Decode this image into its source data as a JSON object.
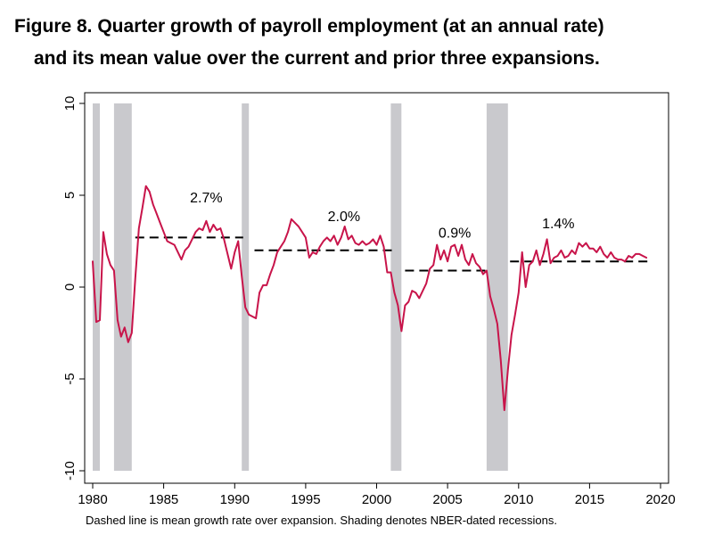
{
  "title": {
    "line1": "Figure 8. Quarter growth of payroll employment (at an annual rate)",
    "line2": "and its mean value over the current and prior three expansions."
  },
  "note": "Dashed line is mean growth rate over expansion. Shading denotes NBER-dated recessions.",
  "colors": {
    "series": "#c8144a",
    "recession": "#c9c9cd",
    "mean": "#000000",
    "frame": "#000000"
  },
  "chart_data": {
    "type": "line",
    "title": "Quarter growth of payroll employment (at an annual rate) and its mean value over the current and prior three expansions.",
    "xlabel": "",
    "ylabel": "",
    "xlim": [
      1979.6,
      2020.4
    ],
    "ylim": [
      -10,
      10
    ],
    "xticks": [
      1980,
      1985,
      1990,
      1995,
      2000,
      2005,
      2010,
      2015,
      2020
    ],
    "yticks": [
      -10,
      -5,
      0,
      5,
      10
    ],
    "grid": false,
    "recessions": [
      [
        1980.0,
        1980.5
      ],
      [
        1981.5,
        1982.75
      ],
      [
        1990.5,
        1991.0
      ],
      [
        2001.0,
        2001.75
      ],
      [
        2007.75,
        2009.25
      ]
    ],
    "expansion_means": [
      {
        "start": 1983.0,
        "end": 1990.6,
        "value": 2.7,
        "label": "2.7%"
      },
      {
        "start": 1991.4,
        "end": 2001.2,
        "value": 2.0,
        "label": "2.0%"
      },
      {
        "start": 2002.0,
        "end": 2008.0,
        "value": 0.9,
        "label": "0.9%"
      },
      {
        "start": 2009.4,
        "end": 2019.1,
        "value": 1.4,
        "label": "1.4%"
      }
    ],
    "series": [
      {
        "name": "Quarterly payroll employment growth (annual rate, %)",
        "points": [
          [
            1980.0,
            1.4
          ],
          [
            1980.25,
            -1.9
          ],
          [
            1980.5,
            -1.8
          ],
          [
            1980.75,
            3.0
          ],
          [
            1981.0,
            1.8
          ],
          [
            1981.25,
            1.2
          ],
          [
            1981.5,
            0.9
          ],
          [
            1981.75,
            -1.8
          ],
          [
            1982.0,
            -2.7
          ],
          [
            1982.25,
            -2.2
          ],
          [
            1982.5,
            -3.0
          ],
          [
            1982.75,
            -2.5
          ],
          [
            1983.0,
            0.5
          ],
          [
            1983.25,
            3.2
          ],
          [
            1983.5,
            4.3
          ],
          [
            1983.75,
            5.5
          ],
          [
            1984.0,
            5.2
          ],
          [
            1984.25,
            4.5
          ],
          [
            1984.5,
            4.0
          ],
          [
            1984.75,
            3.5
          ],
          [
            1985.0,
            3.0
          ],
          [
            1985.25,
            2.5
          ],
          [
            1985.5,
            2.4
          ],
          [
            1985.75,
            2.3
          ],
          [
            1986.0,
            1.9
          ],
          [
            1986.25,
            1.5
          ],
          [
            1986.5,
            2.0
          ],
          [
            1986.75,
            2.2
          ],
          [
            1987.0,
            2.6
          ],
          [
            1987.25,
            3.0
          ],
          [
            1987.5,
            3.2
          ],
          [
            1987.75,
            3.1
          ],
          [
            1988.0,
            3.6
          ],
          [
            1988.25,
            3.0
          ],
          [
            1988.5,
            3.4
          ],
          [
            1988.75,
            3.1
          ],
          [
            1989.0,
            3.2
          ],
          [
            1989.25,
            2.6
          ],
          [
            1989.5,
            1.8
          ],
          [
            1989.75,
            1.0
          ],
          [
            1990.0,
            1.9
          ],
          [
            1990.25,
            2.5
          ],
          [
            1990.5,
            0.6
          ],
          [
            1990.75,
            -1.1
          ],
          [
            1991.0,
            -1.5
          ],
          [
            1991.25,
            -1.6
          ],
          [
            1991.5,
            -1.7
          ],
          [
            1991.75,
            -0.3
          ],
          [
            1992.0,
            0.1
          ],
          [
            1992.25,
            0.1
          ],
          [
            1992.5,
            0.7
          ],
          [
            1992.75,
            1.2
          ],
          [
            1993.0,
            1.9
          ],
          [
            1993.25,
            2.2
          ],
          [
            1993.5,
            2.5
          ],
          [
            1993.75,
            3.0
          ],
          [
            1994.0,
            3.7
          ],
          [
            1994.25,
            3.5
          ],
          [
            1994.5,
            3.3
          ],
          [
            1994.75,
            3.0
          ],
          [
            1995.0,
            2.7
          ],
          [
            1995.25,
            1.6
          ],
          [
            1995.5,
            1.9
          ],
          [
            1995.75,
            1.8
          ],
          [
            1996.0,
            2.2
          ],
          [
            1996.25,
            2.5
          ],
          [
            1996.5,
            2.7
          ],
          [
            1996.75,
            2.5
          ],
          [
            1997.0,
            2.8
          ],
          [
            1997.25,
            2.3
          ],
          [
            1997.5,
            2.7
          ],
          [
            1997.75,
            3.3
          ],
          [
            1998.0,
            2.6
          ],
          [
            1998.25,
            2.8
          ],
          [
            1998.5,
            2.4
          ],
          [
            1998.75,
            2.3
          ],
          [
            1999.0,
            2.5
          ],
          [
            1999.25,
            2.3
          ],
          [
            1999.5,
            2.4
          ],
          [
            1999.75,
            2.6
          ],
          [
            2000.0,
            2.3
          ],
          [
            2000.25,
            2.8
          ],
          [
            2000.5,
            2.2
          ],
          [
            2000.75,
            0.8
          ],
          [
            2001.0,
            0.8
          ],
          [
            2001.25,
            -0.3
          ],
          [
            2001.5,
            -1.0
          ],
          [
            2001.75,
            -2.4
          ],
          [
            2002.0,
            -1.0
          ],
          [
            2002.25,
            -0.8
          ],
          [
            2002.5,
            -0.2
          ],
          [
            2002.75,
            -0.3
          ],
          [
            2003.0,
            -0.6
          ],
          [
            2003.25,
            -0.2
          ],
          [
            2003.5,
            0.2
          ],
          [
            2003.75,
            1.0
          ],
          [
            2004.0,
            1.2
          ],
          [
            2004.25,
            2.3
          ],
          [
            2004.5,
            1.5
          ],
          [
            2004.75,
            2.0
          ],
          [
            2005.0,
            1.4
          ],
          [
            2005.25,
            2.2
          ],
          [
            2005.5,
            2.3
          ],
          [
            2005.75,
            1.7
          ],
          [
            2006.0,
            2.3
          ],
          [
            2006.25,
            1.5
          ],
          [
            2006.5,
            1.2
          ],
          [
            2006.75,
            1.8
          ],
          [
            2007.0,
            1.3
          ],
          [
            2007.25,
            1.1
          ],
          [
            2007.5,
            0.7
          ],
          [
            2007.75,
            0.9
          ],
          [
            2008.0,
            -0.5
          ],
          [
            2008.25,
            -1.2
          ],
          [
            2008.5,
            -2.0
          ],
          [
            2008.75,
            -4.0
          ],
          [
            2009.0,
            -6.7
          ],
          [
            2009.25,
            -4.5
          ],
          [
            2009.5,
            -2.6
          ],
          [
            2009.75,
            -1.5
          ],
          [
            2010.0,
            -0.3
          ],
          [
            2010.25,
            1.9
          ],
          [
            2010.5,
            0.0
          ],
          [
            2010.75,
            1.2
          ],
          [
            2011.0,
            1.4
          ],
          [
            2011.25,
            2.0
          ],
          [
            2011.5,
            1.2
          ],
          [
            2011.75,
            1.8
          ],
          [
            2012.0,
            2.6
          ],
          [
            2012.25,
            1.3
          ],
          [
            2012.5,
            1.6
          ],
          [
            2012.75,
            1.7
          ],
          [
            2013.0,
            2.0
          ],
          [
            2013.25,
            1.6
          ],
          [
            2013.5,
            1.7
          ],
          [
            2013.75,
            2.0
          ],
          [
            2014.0,
            1.8
          ],
          [
            2014.25,
            2.4
          ],
          [
            2014.5,
            2.2
          ],
          [
            2014.75,
            2.4
          ],
          [
            2015.0,
            2.1
          ],
          [
            2015.25,
            2.1
          ],
          [
            2015.5,
            1.9
          ],
          [
            2015.75,
            2.2
          ],
          [
            2016.0,
            1.8
          ],
          [
            2016.25,
            1.6
          ],
          [
            2016.5,
            1.9
          ],
          [
            2016.75,
            1.6
          ],
          [
            2017.0,
            1.5
          ],
          [
            2017.25,
            1.5
          ],
          [
            2017.5,
            1.4
          ],
          [
            2017.75,
            1.7
          ],
          [
            2018.0,
            1.6
          ],
          [
            2018.25,
            1.8
          ],
          [
            2018.5,
            1.8
          ],
          [
            2018.75,
            1.7
          ],
          [
            2019.0,
            1.6
          ]
        ]
      }
    ]
  }
}
